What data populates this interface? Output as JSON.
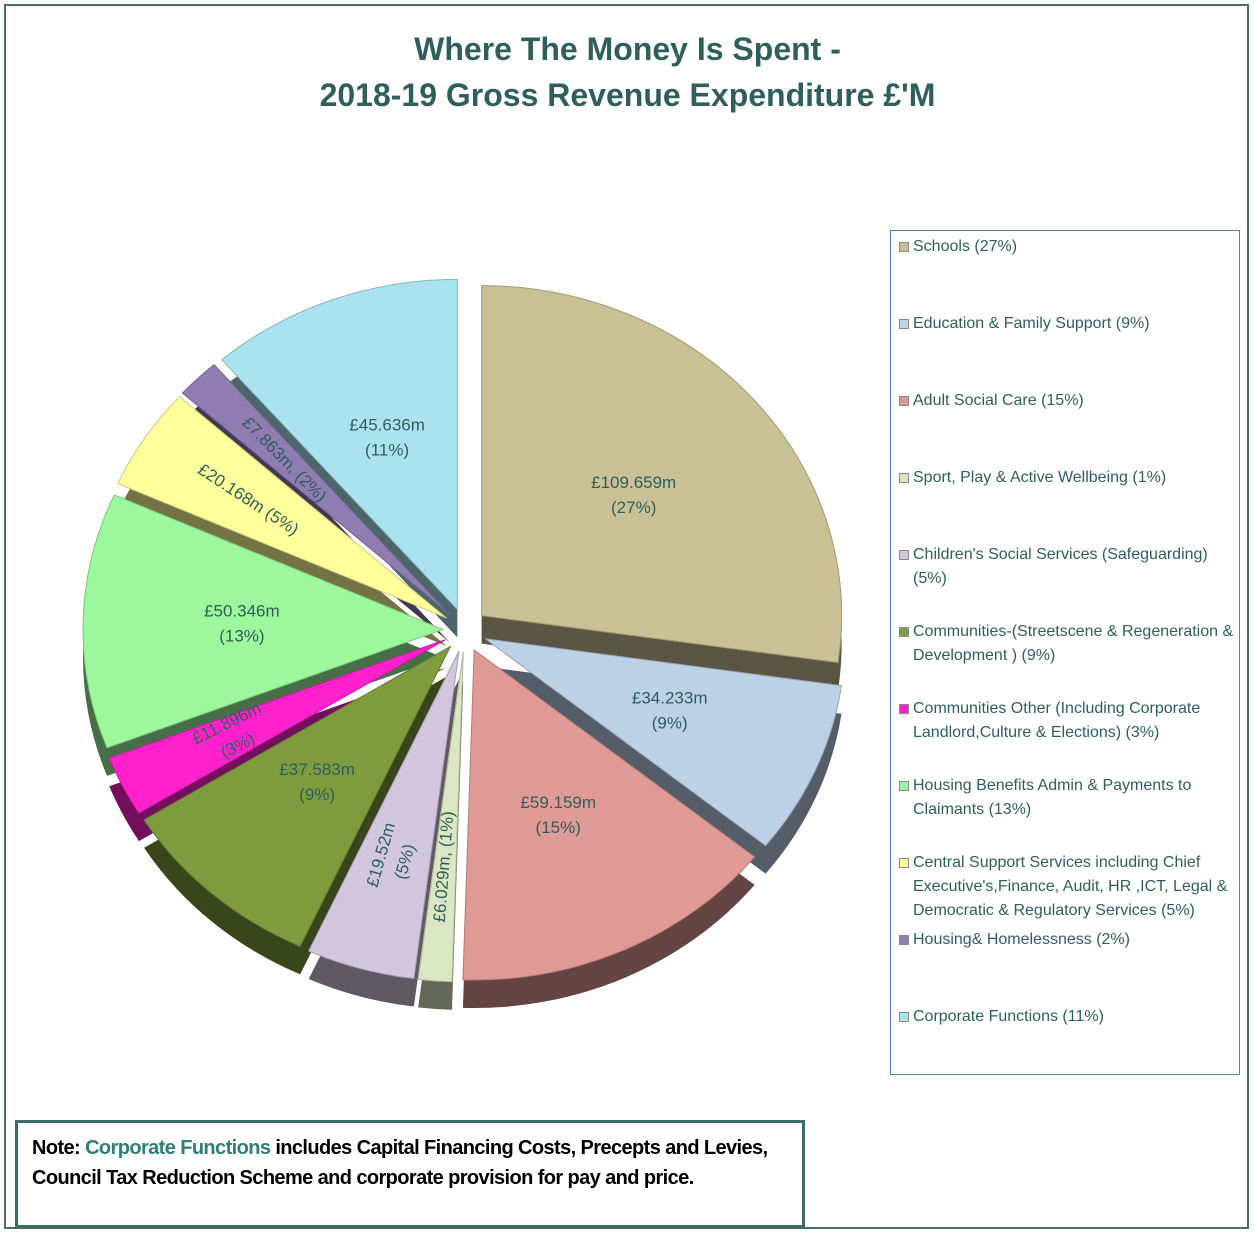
{
  "chart_data": {
    "type": "pie",
    "title": [
      "Where The Money Is Spent -",
      "2018-19 Gross Revenue Expenditure £'M"
    ],
    "categories": [
      "Schools  (27%)",
      "Education & Family Support (9%)",
      "Adult Social Care (15%)",
      "Sport, Play & Active Wellbeing (1%)",
      "Children's Social Services (Safeguarding) (5%)",
      "Communities-(Streetscene & Regeneration & Development ) (9%)",
      "Communities Other (Including Corporate Landlord,Culture & Elections) (3%)",
      "Housing Benefits Admin & Payments to Claimants (13%)",
      "Central  Support Services including  Chief Executive's,Finance, Audit, HR ,ICT, Legal & Democratic & Regulatory Services (5%)",
      "Housing& Homelessness (2%)",
      "Corporate Functions (11%)"
    ],
    "values": [
      109.659,
      34.233,
      59.159,
      6.029,
      19.52,
      37.583,
      11.896,
      50.346,
      20.168,
      7.863,
      45.636
    ],
    "value_labels": [
      [
        "£109.659m",
        "(27%)"
      ],
      [
        "£34.233m",
        "(9%)"
      ],
      [
        "£59.159m",
        "(15%)"
      ],
      [
        "£6.029m, (1%)"
      ],
      [
        "£19.52m",
        "(5%)"
      ],
      [
        "£37.583m",
        "(9%)"
      ],
      [
        "£11.896m",
        "(3%)"
      ],
      [
        "£50.346m",
        "(13%)"
      ],
      [
        "£20.168m (5%)"
      ],
      [
        "£7.863m, (2%)"
      ],
      [
        "£45.636m",
        "(11%)"
      ]
    ],
    "colors": [
      "#c9c095",
      "#bcd0e6",
      "#e09a95",
      "#dbe6c2",
      "#d2c6df",
      "#7e9c3e",
      "#ff22cc",
      "#9cf79d",
      "#ffff9c",
      "#8f7db2",
      "#aae3ef"
    ]
  },
  "note": {
    "label": "Note:",
    "highlight": "Corporate Functions",
    "text": "includes Capital Financing Costs, Precepts and Levies, Council Tax Reduction Scheme and corporate provision for pay and price."
  }
}
